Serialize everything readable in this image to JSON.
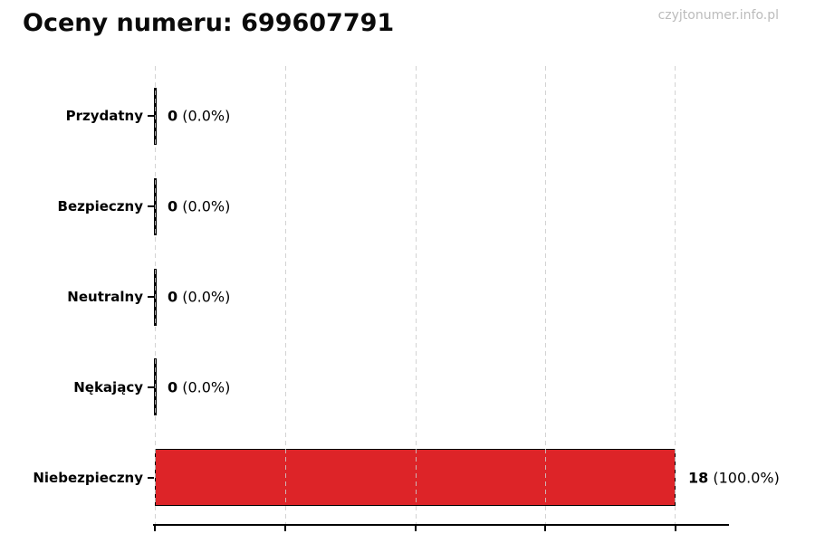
{
  "header": {
    "title": "Oceny numeru: 699607791",
    "watermark": "czyjtonumer.info.pl"
  },
  "chart_data": {
    "type": "bar",
    "orientation": "horizontal",
    "title": "Oceny numeru: 699607791",
    "categories": [
      "Przydatny",
      "Bezpieczny",
      "Neutralny",
      "Nękający",
      "Niebezpieczny"
    ],
    "values": [
      0,
      0,
      0,
      0,
      18
    ],
    "percentages": [
      0.0,
      0.0,
      0.0,
      0.0,
      100.0
    ],
    "value_labels": [
      "0 (0.0%)",
      "0 (0.0%)",
      "0 (0.0%)",
      "0 (0.0%)",
      "18 (100.0%)"
    ],
    "xlabel": "",
    "ylabel": "",
    "xlim": [
      0,
      18
    ],
    "axis_right_padding_units": 1.8,
    "grid": true,
    "grid_style": "dashed",
    "gridline_positions_pct": [
      0,
      25,
      50,
      75,
      100
    ],
    "x_tick_labels_visible": false,
    "bar_color": "#dd2428",
    "bar_edge_color": "#000000",
    "grid_color": "#cbcbcb",
    "watermark_color": "#bcbcbc",
    "legend": false
  },
  "rows": [
    {
      "label": "Przydatny",
      "count": "0",
      "pct": "(0.0%)"
    },
    {
      "label": "Bezpieczny",
      "count": "0",
      "pct": "(0.0%)"
    },
    {
      "label": "Neutralny",
      "count": "0",
      "pct": "(0.0%)"
    },
    {
      "label": "Nękający",
      "count": "0",
      "pct": "(0.0%)"
    },
    {
      "label": "Niebezpieczny",
      "count": "18",
      "pct": "(100.0%)"
    }
  ]
}
